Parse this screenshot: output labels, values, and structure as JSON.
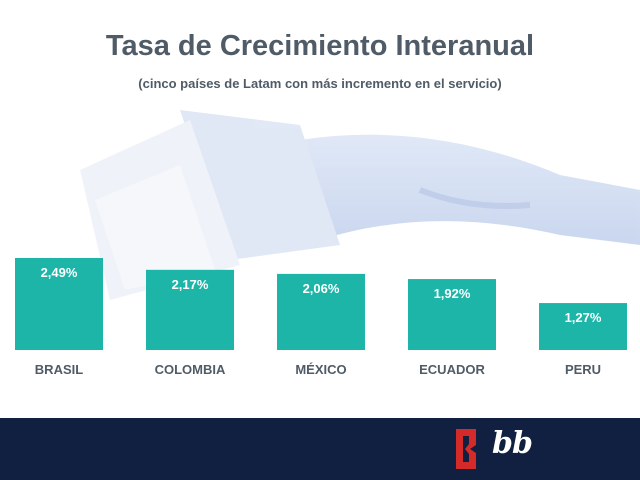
{
  "title": "Tasa de Crecimiento Interanual",
  "subtitle": "(cinco países de Latam con más incremento en el servicio)",
  "colors": {
    "bar": "#1cb5a8",
    "bar_label": "#ffffff",
    "category_label": "#4f5b66",
    "footer": "#112040",
    "logo_red": "#d42a2a"
  },
  "logo": {
    "text": "bb"
  },
  "chart_data": {
    "type": "bar",
    "title": "Tasa de Crecimiento Interanual",
    "subtitle": "(cinco países de Latam con más incremento en el servicio)",
    "categories": [
      "BRASIL",
      "COLOMBIA",
      "MÉXICO",
      "ECUADOR",
      "PERU"
    ],
    "values": [
      2.49,
      2.17,
      2.06,
      1.92,
      1.27
    ],
    "value_labels": [
      "2,49%",
      "2,17%",
      "2,06%",
      "1,92%",
      "1,27%"
    ],
    "unit": "%",
    "ylim": [
      0,
      2.49
    ],
    "grid": false,
    "legend": "none"
  }
}
